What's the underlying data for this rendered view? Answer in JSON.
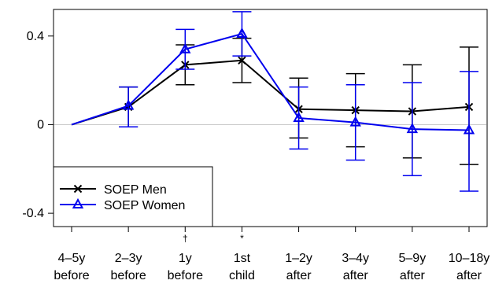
{
  "chart_data": {
    "type": "line",
    "title": "",
    "xlabel": "",
    "ylabel": "",
    "ylim": [
      -0.46,
      0.52
    ],
    "yticks": [
      "-0.4",
      "0",
      "0.4"
    ],
    "ytick_values": [
      -0.4,
      0,
      0.4
    ],
    "categories": [
      [
        "4–5y",
        "before"
      ],
      [
        "2–3y",
        "before"
      ],
      [
        "1y",
        "before"
      ],
      [
        "1st",
        "child"
      ],
      [
        "1–2y",
        "after"
      ],
      [
        "3–4y",
        "after"
      ],
      [
        "5–9y",
        "after"
      ],
      [
        "10–18y",
        "after"
      ]
    ],
    "significance": [
      "",
      "",
      "†",
      "*",
      "",
      "",
      "",
      ""
    ],
    "reference_line": 0,
    "grid": false,
    "legend_position": "bottom-left",
    "series": [
      {
        "name": "SOEP Men",
        "color": "#000000",
        "marker": "x",
        "values": [
          0.0,
          0.08,
          0.27,
          0.29,
          0.07,
          0.065,
          0.06,
          0.08
        ],
        "lower": [
          null,
          -0.01,
          0.18,
          0.19,
          -0.06,
          -0.1,
          -0.15,
          -0.18
        ],
        "upper": [
          null,
          0.17,
          0.36,
          0.39,
          0.21,
          0.23,
          0.27,
          0.35
        ]
      },
      {
        "name": "SOEP Women",
        "color": "#0000ee",
        "marker": "triangle",
        "values": [
          0.0,
          0.085,
          0.34,
          0.41,
          0.03,
          0.01,
          -0.02,
          -0.025
        ],
        "lower": [
          null,
          -0.01,
          0.25,
          0.31,
          -0.11,
          -0.16,
          -0.23,
          -0.3
        ],
        "upper": [
          null,
          0.17,
          0.43,
          0.51,
          0.17,
          0.18,
          0.19,
          0.24
        ]
      }
    ]
  }
}
